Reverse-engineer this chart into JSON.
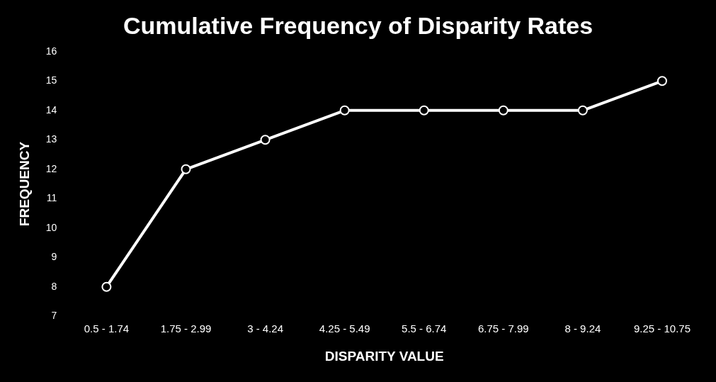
{
  "chart_data": {
    "type": "line",
    "title": "Cumulative Frequency of Disparity Rates",
    "xlabel": "DISPARITY VALUE",
    "ylabel": "FREQUENCY",
    "categories": [
      "0.5 - 1.74",
      "1.75 - 2.99",
      "3 - 4.24",
      "4.25 - 5.49",
      "5.5 - 6.74",
      "6.75 - 7.99",
      "8 - 9.24",
      "9.25 - 10.75"
    ],
    "series": [
      {
        "color": "#ffffff",
        "values": [
          8,
          12,
          13,
          14,
          14,
          14,
          14,
          15
        ]
      }
    ],
    "ylim": [
      7,
      16
    ],
    "yticks": [
      7,
      8,
      9,
      10,
      11,
      12,
      13,
      14,
      15,
      16
    ],
    "grid": false,
    "legend": false,
    "marker": "circle",
    "line_style": "solid"
  }
}
